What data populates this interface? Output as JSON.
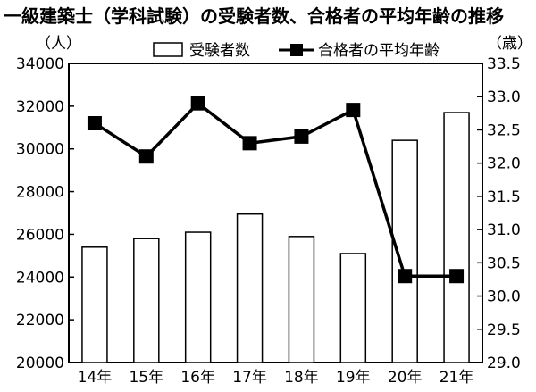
{
  "chart_data": {
    "type": "bar",
    "title": "一級建築士（学科試験）の受験者数、合格者の平均年齢の推移",
    "categories": [
      "14年",
      "15年",
      "16年",
      "17年",
      "18年",
      "19年",
      "20年",
      "21年"
    ],
    "series": [
      {
        "name": "受験者数",
        "type": "bar",
        "axis": "left",
        "values": [
          25400,
          25800,
          26100,
          26950,
          25900,
          25100,
          30400,
          31700
        ]
      },
      {
        "name": "合格者の平均年齢",
        "type": "line",
        "axis": "right",
        "values": [
          32.6,
          32.1,
          32.9,
          32.3,
          32.4,
          32.8,
          30.3,
          30.3
        ]
      }
    ],
    "ylabel_left": "（人）",
    "ylabel_right": "（歳）",
    "ylim_left": [
      20000,
      34000
    ],
    "ylim_right": [
      29.0,
      33.5
    ],
    "yticks_left": [
      "20000",
      "22000",
      "24000",
      "26000",
      "28000",
      "30000",
      "32000",
      "34000"
    ],
    "yticks_right": [
      "29.0",
      "29.5",
      "30.0",
      "30.5",
      "31.0",
      "31.5",
      "32.0",
      "32.5",
      "33.0",
      "33.5"
    ],
    "legend": "top",
    "grid": false,
    "colors": {
      "bar_fill": "#ffffff",
      "bar_stroke": "#000000",
      "line": "#000000",
      "marker": "#000000"
    }
  }
}
